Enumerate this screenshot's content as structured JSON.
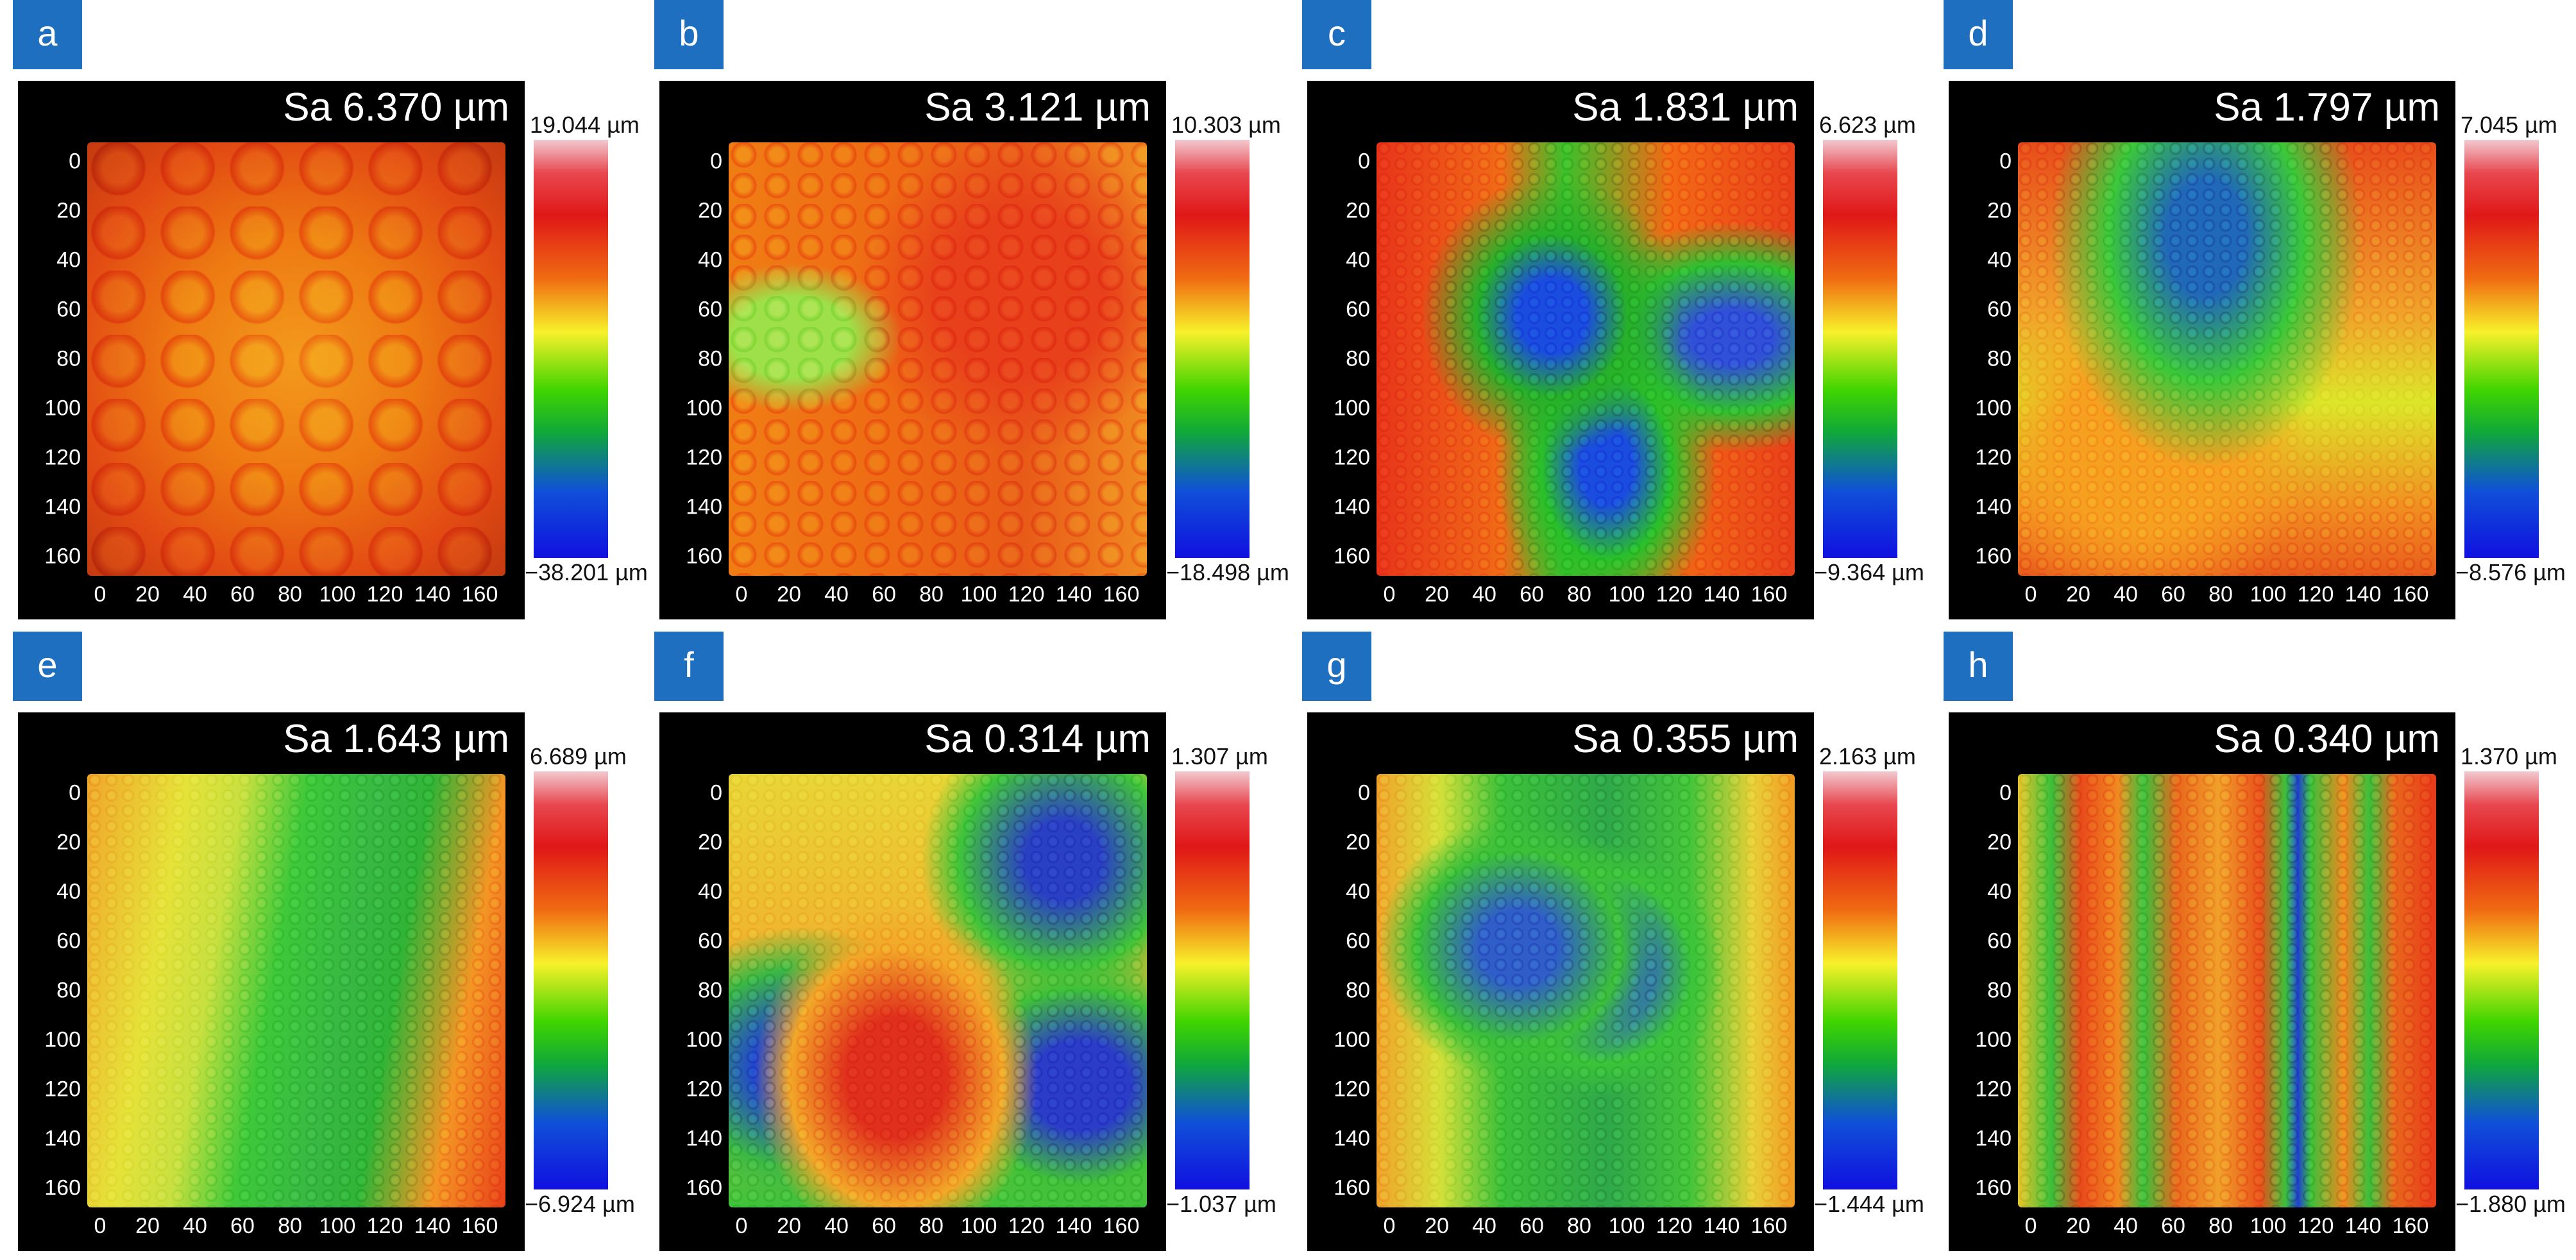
{
  "axis_ticks": [
    "0",
    "20",
    "40",
    "60",
    "80",
    "100",
    "120",
    "140",
    "160"
  ],
  "panels": [
    {
      "letter": "a",
      "sa": "Sa 6.370 µm",
      "max": "19.044 µm",
      "min": "−38.201 µm"
    },
    {
      "letter": "b",
      "sa": "Sa 3.121 µm",
      "max": "10.303 µm",
      "min": "−18.498 µm"
    },
    {
      "letter": "c",
      "sa": "Sa 1.831 µm",
      "max": "6.623 µm",
      "min": "−9.364 µm"
    },
    {
      "letter": "d",
      "sa": "Sa 1.797 µm",
      "max": "7.045 µm",
      "min": "−8.576 µm"
    },
    {
      "letter": "e",
      "sa": "Sa 1.643 µm",
      "max": "6.689 µm",
      "min": "−6.924 µm"
    },
    {
      "letter": "f",
      "sa": "Sa 0.314 µm",
      "max": "1.307 µm",
      "min": "−1.037 µm"
    },
    {
      "letter": "g",
      "sa": "Sa 0.355 µm",
      "max": "2.163 µm",
      "min": "−1.444 µm"
    },
    {
      "letter": "h",
      "sa": "Sa 0.340 µm",
      "max": "1.370 µm",
      "min": "−1.880 µm"
    }
  ],
  "colors": {
    "tag_blue": "#1f6fc0",
    "panel_bg": "#000000",
    "high": "#e01717",
    "mid": "#f7f12a",
    "low_green": "#3fd400",
    "low_blue": "#1010e0"
  }
}
